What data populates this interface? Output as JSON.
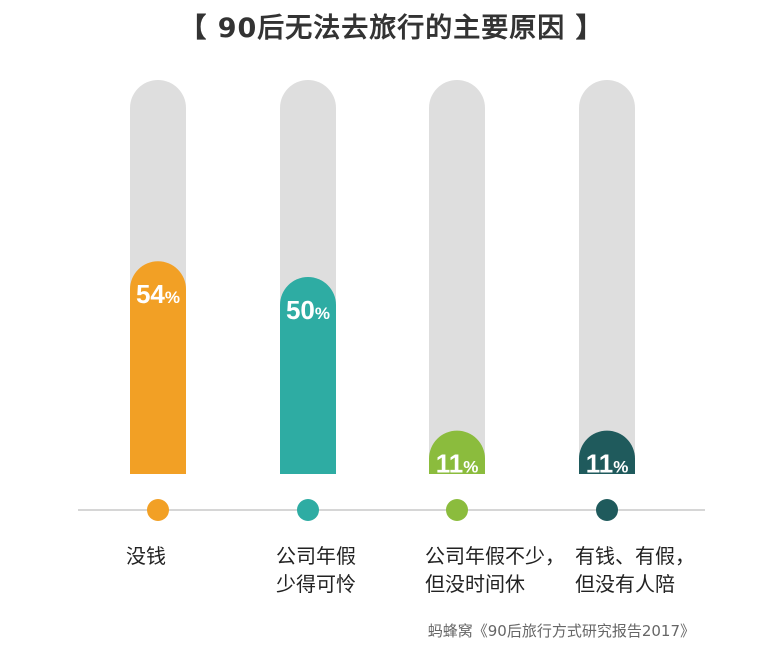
{
  "chart_data": {
    "type": "bar",
    "title": "【 90后无法去旅行的主要原因 】",
    "categories": [
      [
        "没钱"
      ],
      [
        "公司年假",
        "少得可怜"
      ],
      [
        "公司年假不少，",
        "但没时间休"
      ],
      [
        "有钱、有假，",
        "但没有人陪"
      ]
    ],
    "values": [
      54,
      50,
      11,
      11
    ],
    "value_labels": [
      "54",
      "50",
      "11",
      "11"
    ],
    "unit": "%",
    "ylim": [
      0,
      100
    ],
    "colors": [
      "#F2A025",
      "#2EACA3",
      "#8BBC3D",
      "#1F5A5C"
    ],
    "track_color": "#DEDEDE",
    "source": "蚂蜂窝《90后旅行方式研究报告2017》"
  }
}
